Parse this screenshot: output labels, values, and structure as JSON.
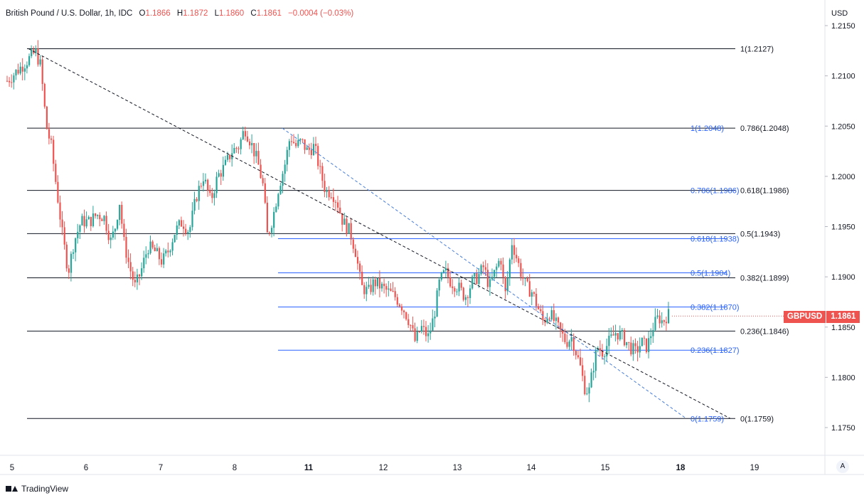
{
  "legend": {
    "symbol": "British Pound / U.S. Dollar, 1h, IDC",
    "open_label": "O",
    "open": "1.1866",
    "high_label": "H",
    "high": "1.1872",
    "low_label": "L",
    "low": "1.1860",
    "close_label": "C",
    "close": "1.1861",
    "change": "−0.0004 (−0.03%)"
  },
  "currency": "USD",
  "price_tag": {
    "symbol": "GBPUSD",
    "price": "1.1861"
  },
  "scale_button": "A",
  "brand": "TradingView",
  "colors": {
    "up": "#26a69a",
    "down": "#ef5350",
    "fib_black": "#131722",
    "fib_blue": "#2962ff"
  },
  "chart_data": {
    "type": "candlestick",
    "title": "British Pound / U.S. Dollar, 1h, IDC",
    "ylim": [
      1.1715,
      1.2165
    ],
    "y_ticks": [
      "1.2150",
      "1.2100",
      "1.2050",
      "1.2000",
      "1.1950",
      "1.1900",
      "1.1850",
      "1.1800",
      "1.1750"
    ],
    "x_ticks": [
      "5",
      "6",
      "7",
      "8",
      "11",
      "12",
      "13",
      "14",
      "15",
      "18",
      "19"
    ],
    "fib_black": [
      {
        "label": "1(1.2127)",
        "value": 1.2127
      },
      {
        "label": "0.786(1.2048)",
        "value": 1.2048
      },
      {
        "label": "0.618(1.1986)",
        "value": 1.1986
      },
      {
        "label": "0.5(1.1943)",
        "value": 1.1943
      },
      {
        "label": "0.382(1.1899)",
        "value": 1.1899
      },
      {
        "label": "0.236(1.1846)",
        "value": 1.1846
      },
      {
        "label": "0(1.1759)",
        "value": 1.1759
      }
    ],
    "fib_blue": [
      {
        "label": "1(1.2048)",
        "value": 1.2048
      },
      {
        "label": "0.786(1.1986)",
        "value": 1.1986
      },
      {
        "label": "0.618(1.1938)",
        "value": 1.1938
      },
      {
        "label": "0.5(1.1904)",
        "value": 1.1904
      },
      {
        "label": "0.382(1.1870)",
        "value": 1.187
      },
      {
        "label": "0.236(1.1827)",
        "value": 1.1827
      },
      {
        "label": "0(1.1759)",
        "value": 1.1759
      }
    ],
    "path": [
      [
        0,
        1.2095
      ],
      [
        14,
        1.2105
      ],
      [
        28,
        1.2115
      ],
      [
        40,
        1.2124
      ],
      [
        47,
        1.211
      ],
      [
        55,
        1.205
      ],
      [
        62,
        1.203
      ],
      [
        70,
        1.1985
      ],
      [
        78,
        1.194
      ],
      [
        86,
        1.1905
      ],
      [
        94,
        1.1935
      ],
      [
        104,
        1.1955
      ],
      [
        116,
        1.1955
      ],
      [
        126,
        1.1962
      ],
      [
        136,
        1.196
      ],
      [
        146,
        1.1935
      ],
      [
        152,
        1.195
      ],
      [
        158,
        1.1975
      ],
      [
        164,
        1.1935
      ],
      [
        172,
        1.191
      ],
      [
        180,
        1.189
      ],
      [
        188,
        1.1905
      ],
      [
        198,
        1.193
      ],
      [
        208,
        1.1925
      ],
      [
        218,
        1.1915
      ],
      [
        226,
        1.1925
      ],
      [
        236,
        1.1945
      ],
      [
        246,
        1.1955
      ],
      [
        256,
        1.1945
      ],
      [
        266,
        1.198
      ],
      [
        276,
        1.2
      ],
      [
        286,
        1.1975
      ],
      [
        296,
        1.2
      ],
      [
        306,
        1.201
      ],
      [
        316,
        1.2025
      ],
      [
        326,
        1.203
      ],
      [
        334,
        1.2048
      ],
      [
        342,
        1.2035
      ],
      [
        352,
        1.2015
      ],
      [
        360,
        1.199
      ],
      [
        366,
        1.194
      ],
      [
        374,
        1.196
      ],
      [
        382,
        1.199
      ],
      [
        390,
        1.201
      ],
      [
        398,
        1.204
      ],
      [
        406,
        1.203
      ],
      [
        414,
        1.2035
      ],
      [
        422,
        1.2025
      ],
      [
        432,
        1.203
      ],
      [
        440,
        1.2005
      ],
      [
        448,
        1.1985
      ],
      [
        456,
        1.1985
      ],
      [
        464,
        1.1975
      ],
      [
        472,
        1.1955
      ],
      [
        482,
        1.1945
      ],
      [
        490,
        1.1925
      ],
      [
        498,
        1.189
      ],
      [
        508,
        1.1885
      ],
      [
        516,
        1.1895
      ],
      [
        526,
        1.189
      ],
      [
        536,
        1.1885
      ],
      [
        546,
        1.188
      ],
      [
        556,
        1.187
      ],
      [
        566,
        1.1855
      ],
      [
        574,
        1.1835
      ],
      [
        582,
        1.185
      ],
      [
        592,
        1.184
      ],
      [
        600,
        1.186
      ],
      [
        608,
        1.1895
      ],
      [
        616,
        1.1905
      ],
      [
        624,
        1.1895
      ],
      [
        634,
        1.189
      ],
      [
        644,
        1.188
      ],
      [
        654,
        1.1895
      ],
      [
        662,
        1.19
      ],
      [
        670,
        1.191
      ],
      [
        678,
        1.189
      ],
      [
        686,
        1.1905
      ],
      [
        694,
        1.192
      ],
      [
        700,
        1.188
      ],
      [
        704,
        1.19
      ],
      [
        710,
        1.1935
      ],
      [
        716,
        1.192
      ],
      [
        722,
        1.1905
      ],
      [
        730,
        1.189
      ],
      [
        738,
        1.1885
      ],
      [
        746,
        1.187
      ],
      [
        754,
        1.1855
      ],
      [
        762,
        1.1865
      ],
      [
        770,
        1.1855
      ],
      [
        778,
        1.1845
      ],
      [
        786,
        1.1835
      ],
      [
        794,
        1.184
      ],
      [
        800,
        1.1825
      ],
      [
        806,
        1.181
      ],
      [
        812,
        1.179
      ],
      [
        818,
        1.1785
      ],
      [
        824,
        1.181
      ],
      [
        830,
        1.183
      ],
      [
        838,
        1.1825
      ],
      [
        846,
        1.1835
      ],
      [
        856,
        1.1845
      ],
      [
        866,
        1.184
      ],
      [
        876,
        1.183
      ],
      [
        884,
        1.1825
      ],
      [
        892,
        1.1835
      ],
      [
        900,
        1.183
      ],
      [
        908,
        1.185
      ],
      [
        916,
        1.186
      ],
      [
        922,
        1.1855
      ],
      [
        928,
        1.1862
      ],
      [
        936,
        1.1863
      ],
      [
        942,
        1.1861
      ]
    ]
  }
}
